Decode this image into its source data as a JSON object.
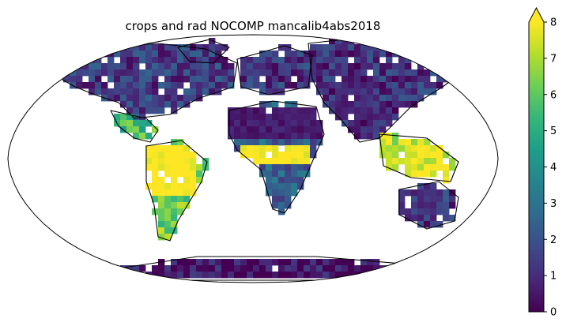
{
  "title": "crops and rad NOCOMP mancalib4abs2018",
  "colormap": {
    "name": "viridis",
    "stops": [
      "#440154",
      "#482878",
      "#3e4989",
      "#31688e",
      "#26828e",
      "#1f9e89",
      "#35b779",
      "#6ece58",
      "#b5de2b",
      "#fde725"
    ]
  },
  "colorbar": {
    "ticks": [
      "0",
      "1",
      "2",
      "3",
      "4",
      "5",
      "6",
      "7",
      "8"
    ],
    "min": 0,
    "max": 8,
    "extend": "max"
  },
  "map": {
    "projection": "Robinson",
    "ocean_color": "#ffffff",
    "coastline_color": "#000000"
  }
}
